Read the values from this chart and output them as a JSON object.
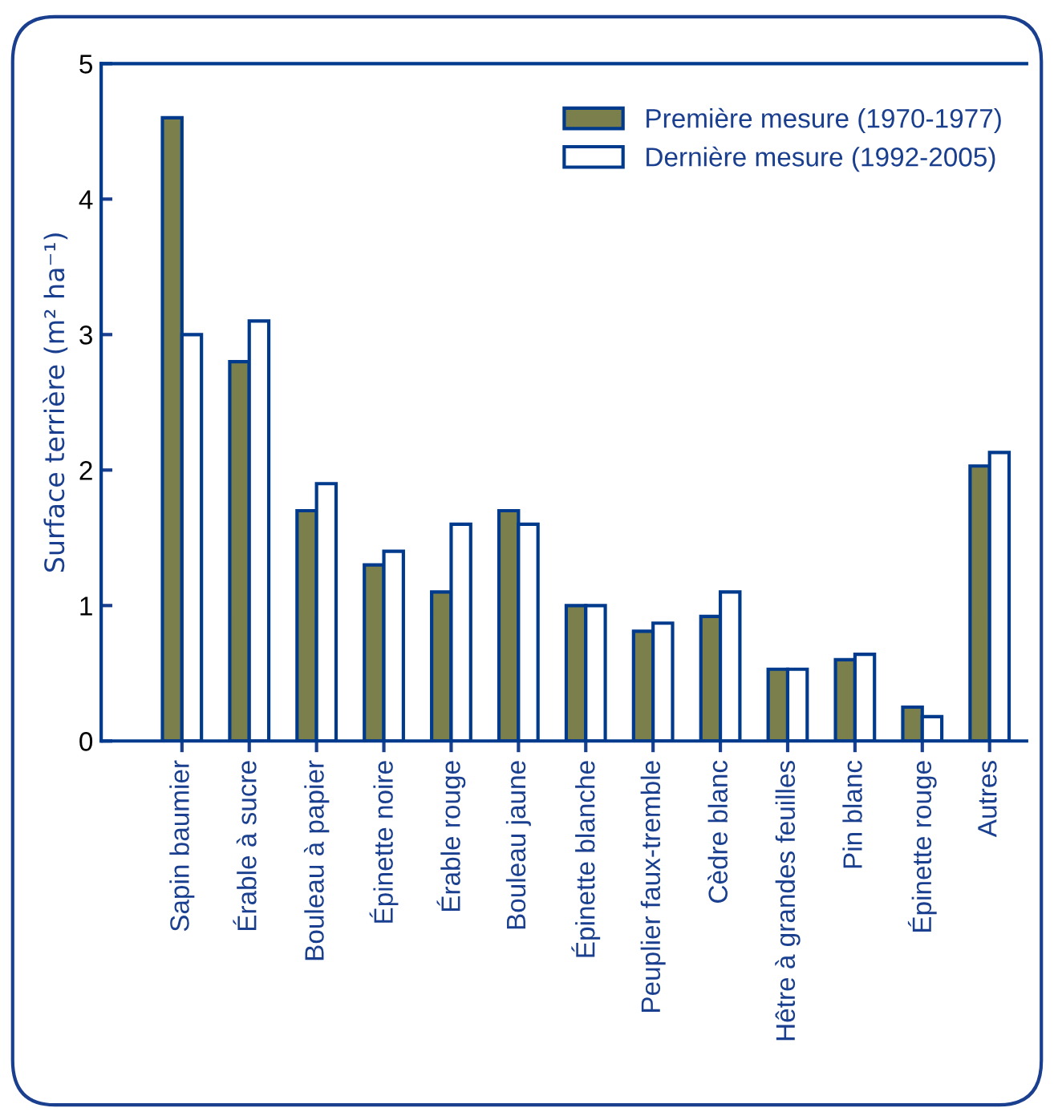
{
  "chart_data": {
    "type": "bar",
    "ylabel": "Surface terrière (m² ha⁻¹)",
    "categories": [
      "Sapin baumier",
      "Érable à sucre",
      "Bouleau à papier",
      "Épinette noire",
      "Érable rouge",
      "Bouleau jaune",
      "Épinette blanche",
      "Peuplier faux-tremble",
      "Cèdre blanc",
      "Hêtre à grandes feuilles",
      "Pin blanc",
      "Épinette rouge",
      "Autres"
    ],
    "series": [
      {
        "name": "Première mesure (1970-1977)",
        "color": "#7a7f4c",
        "values": [
          4.6,
          2.8,
          1.7,
          1.3,
          1.1,
          1.7,
          1.0,
          0.81,
          0.92,
          0.53,
          0.6,
          0.25,
          2.03
        ]
      },
      {
        "name": "Dernière mesure (1992-2005)",
        "color": "#ffffff",
        "values": [
          3.0,
          3.1,
          1.9,
          1.4,
          1.6,
          1.6,
          1.0,
          0.87,
          1.1,
          0.53,
          0.64,
          0.18,
          2.13
        ]
      }
    ],
    "ylim": [
      0,
      5
    ],
    "yticks": [
      0,
      1,
      2,
      3,
      4,
      5
    ],
    "grid": false,
    "legend": "top right"
  }
}
